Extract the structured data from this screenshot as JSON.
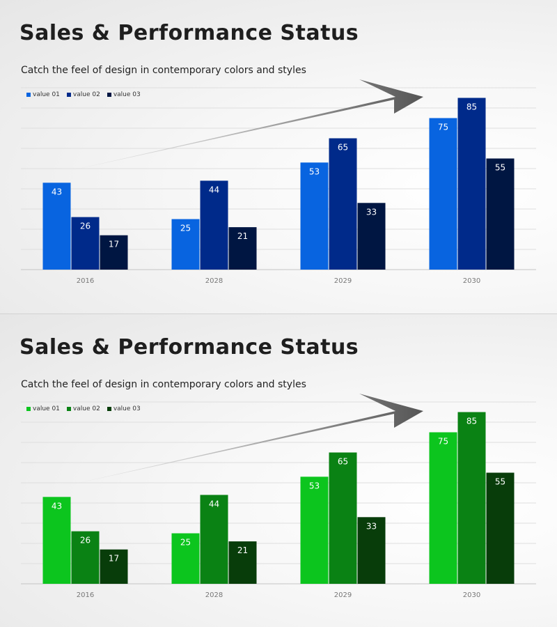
{
  "slides": [
    {
      "title": "Sales & Performance Status",
      "subtitle": "Catch the feel of design in contemporary colors and styles",
      "colors": {
        "series": [
          "#0864e0",
          "#002a8a",
          "#001642"
        ]
      }
    },
    {
      "title": "Sales & Performance Status",
      "subtitle": "Catch the feel of design in contemporary colors and styles",
      "colors": {
        "series": [
          "#0cc51e",
          "#0a8214",
          "#083d0a"
        ]
      }
    }
  ],
  "chart_data": [
    {
      "type": "bar",
      "categories": [
        "2016",
        "2028",
        "2029",
        "2030"
      ],
      "series": [
        {
          "name": "value 01",
          "values": [
            43,
            25,
            53,
            75
          ]
        },
        {
          "name": "value 02",
          "values": [
            26,
            44,
            65,
            85
          ]
        },
        {
          "name": "value 03",
          "values": [
            17,
            21,
            33,
            55
          ]
        }
      ],
      "ylim": [
        0,
        90
      ],
      "grid": true,
      "legend": "top-left",
      "annotation": "trend arrow"
    },
    {
      "type": "bar",
      "categories": [
        "2016",
        "2028",
        "2029",
        "2030"
      ],
      "series": [
        {
          "name": "value 01",
          "values": [
            43,
            25,
            53,
            75
          ]
        },
        {
          "name": "value 02",
          "values": [
            26,
            44,
            65,
            85
          ]
        },
        {
          "name": "value 03",
          "values": [
            17,
            21,
            33,
            55
          ]
        }
      ],
      "ylim": [
        0,
        90
      ],
      "grid": true,
      "legend": "top-left",
      "annotation": "trend arrow"
    }
  ]
}
